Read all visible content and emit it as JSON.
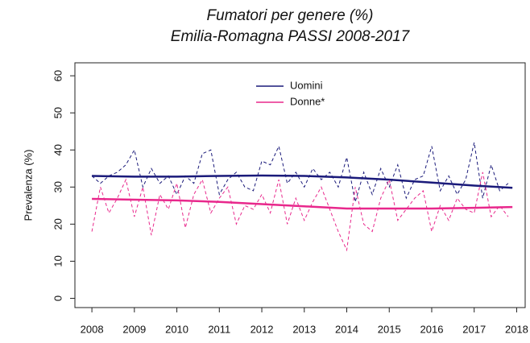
{
  "chart_data": {
    "type": "line",
    "title": "Fumatori per genere (%)",
    "subtitle": "Emilia-Romagna PASSI 2008-2017",
    "y_label": "Prevalenza (%)",
    "xlim": [
      2007.6,
      2018.2
    ],
    "ylim": [
      -2.5,
      63.5
    ],
    "xticks": [
      2008,
      2009,
      2010,
      2011,
      2012,
      2013,
      2014,
      2015,
      2016,
      2017,
      2018
    ],
    "yticks": [
      0,
      10,
      20,
      30,
      40,
      50,
      60
    ],
    "x": [
      2008.0,
      2008.2,
      2008.4,
      2008.6,
      2008.8,
      2009.0,
      2009.2,
      2009.4,
      2009.6,
      2009.8,
      2010.0,
      2010.2,
      2010.4,
      2010.6,
      2010.8,
      2011.0,
      2011.2,
      2011.4,
      2011.6,
      2011.8,
      2012.0,
      2012.2,
      2012.4,
      2012.6,
      2012.8,
      2013.0,
      2013.2,
      2013.4,
      2013.6,
      2013.8,
      2014.0,
      2014.2,
      2014.4,
      2014.6,
      2014.8,
      2015.0,
      2015.2,
      2015.4,
      2015.6,
      2015.8,
      2016.0,
      2016.2,
      2016.4,
      2016.6,
      2016.8,
      2017.0,
      2017.2,
      2017.4,
      2017.6,
      2017.8
    ],
    "x_trend": [
      2008,
      2009,
      2010,
      2011,
      2012,
      2013,
      2014,
      2015,
      2016,
      2017,
      2017.9
    ],
    "series": [
      {
        "name": "Uomini",
        "color": "#1a1a7a",
        "values": [
          33,
          31,
          33,
          34,
          36,
          40,
          30,
          35,
          31,
          33,
          28,
          33,
          31,
          39,
          40,
          28,
          32,
          34,
          30,
          29,
          37,
          36,
          41,
          31,
          34,
          30,
          35,
          32,
          34,
          30,
          38,
          26,
          34,
          28,
          35,
          30,
          36,
          27,
          32,
          33,
          41,
          29,
          33,
          28,
          32,
          42,
          27,
          36,
          29,
          31
        ],
        "trend": [
          33,
          32.8,
          32.8,
          33,
          33.1,
          33,
          32.6,
          32,
          31.2,
          30.4,
          29.8
        ]
      },
      {
        "name": "Donne*",
        "color": "#e8288c",
        "values": [
          18,
          30,
          23,
          27,
          32,
          22,
          30,
          17,
          28,
          24,
          31,
          19,
          28,
          32,
          23,
          27,
          30,
          20,
          25,
          24,
          28,
          23,
          32,
          20,
          27,
          21,
          26,
          30,
          24,
          18,
          13,
          30,
          20,
          18,
          27,
          32,
          21,
          24,
          27,
          29,
          18,
          25,
          21,
          27,
          24,
          23,
          34,
          22,
          25,
          22
        ],
        "trend": [
          26.8,
          26.6,
          26.4,
          26,
          25.4,
          24.8,
          24.2,
          24.2,
          24.2,
          24.4,
          24.6
        ]
      }
    ]
  }
}
